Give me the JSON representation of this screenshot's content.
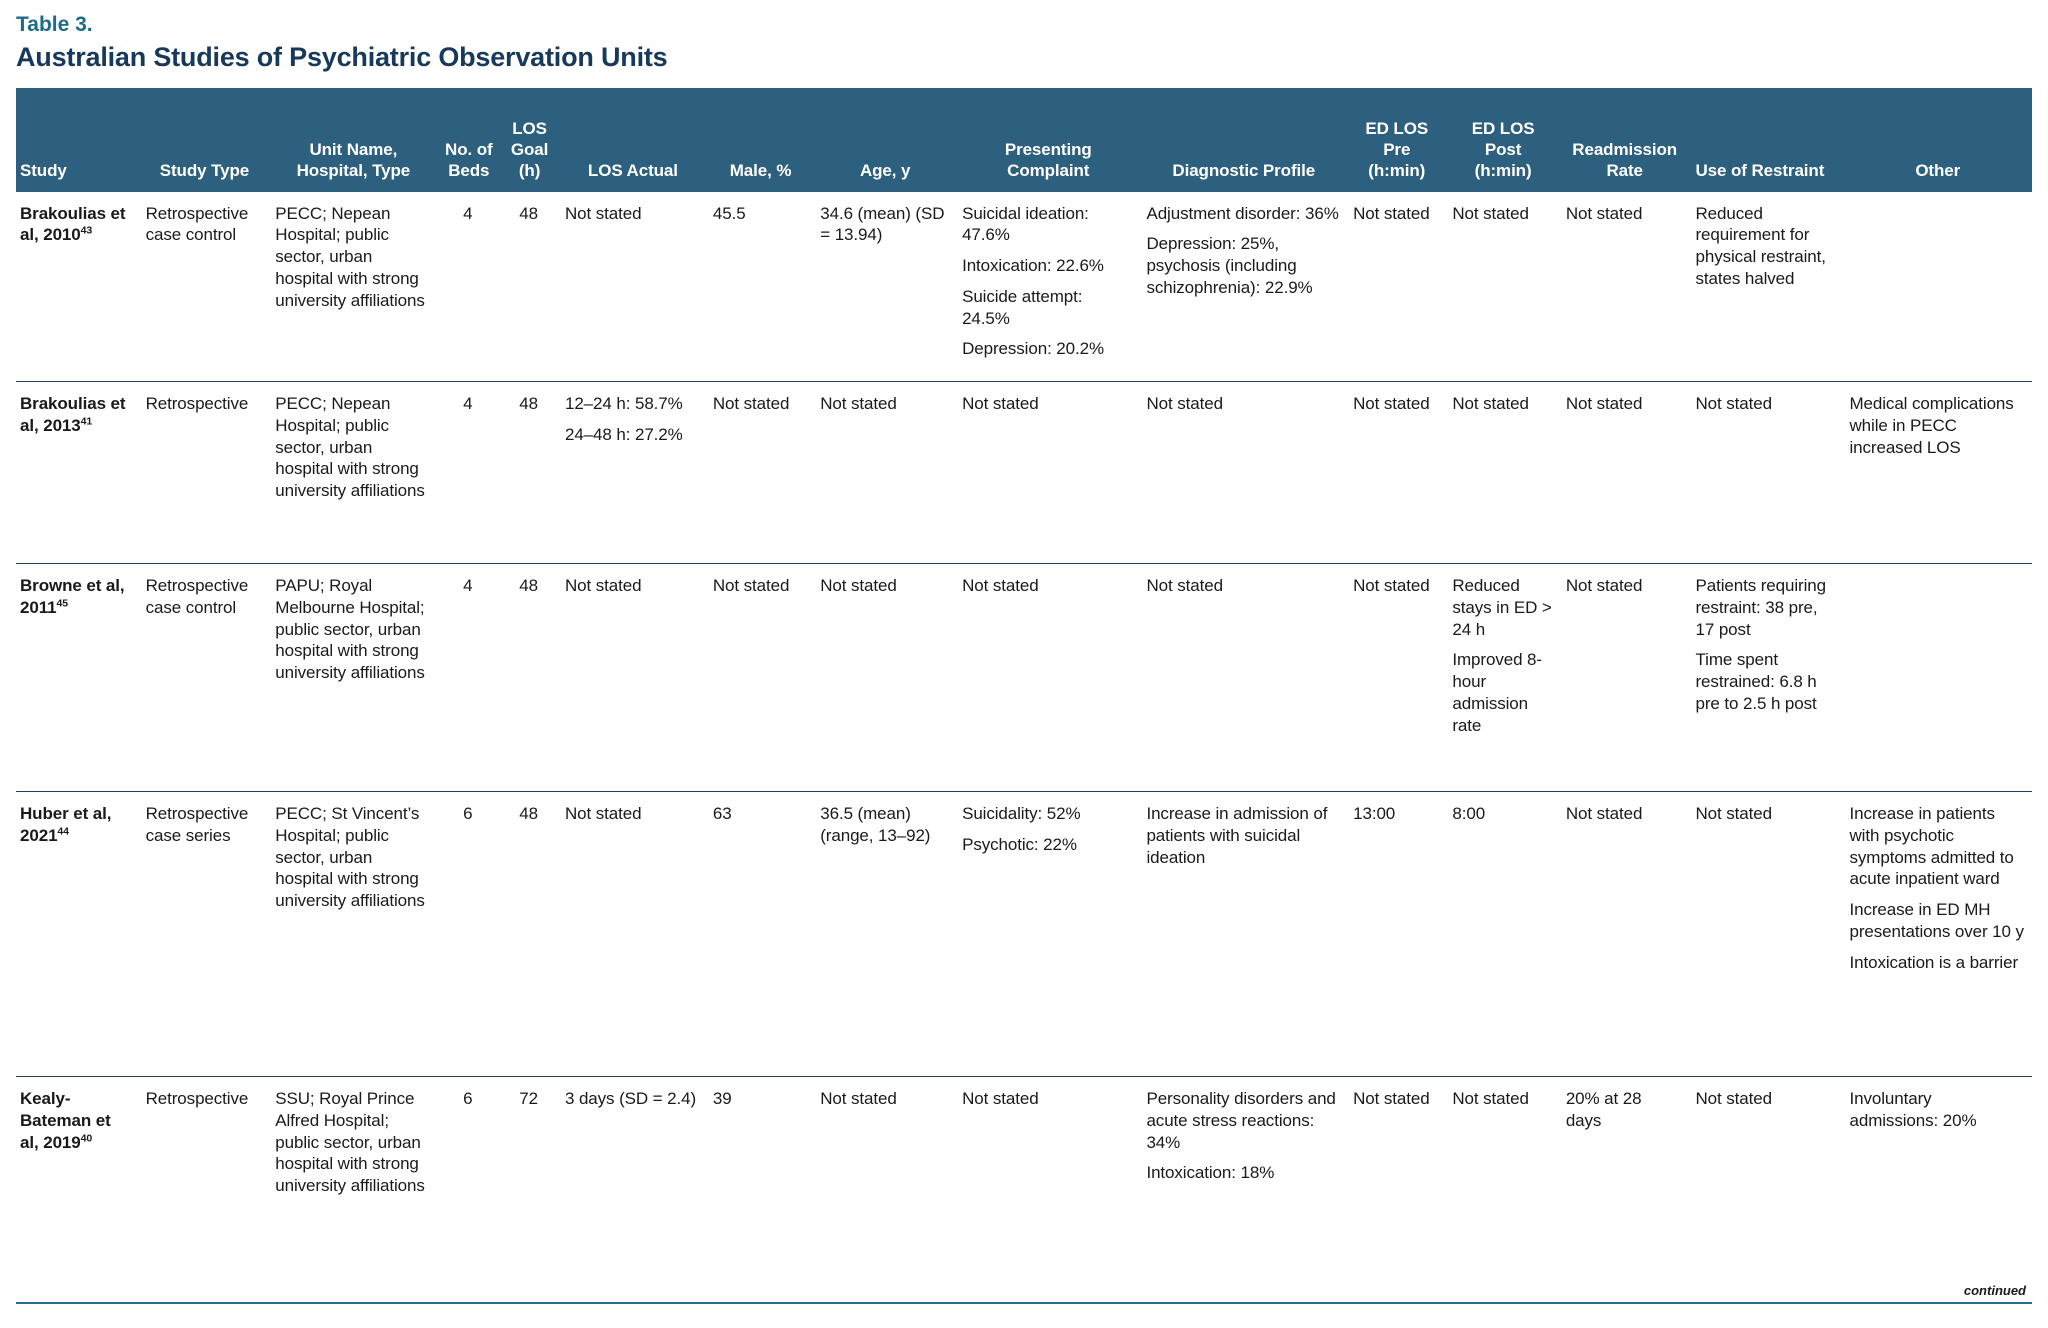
{
  "page": {
    "table_label": "Table 3.",
    "title": "Australian Studies of Psychiatric Observation Units",
    "continued_label": "continued"
  },
  "colors": {
    "header_background": "#2d5f7e",
    "table_label": "#1b6b89",
    "title": "#16395c",
    "row_rule": "#22405e",
    "bottom_rule": "#2d6b8c",
    "body_text": "#1a1a1a",
    "header_text": "#ffffff"
  },
  "table": {
    "columns": [
      {
        "key": "study",
        "label": "Study"
      },
      {
        "key": "study_type",
        "label": "Study Type"
      },
      {
        "key": "unit",
        "label": "Unit Name,\nHospital, Type"
      },
      {
        "key": "beds",
        "label": "No. of\nBeds"
      },
      {
        "key": "los_goal",
        "label": "LOS\nGoal\n(h)"
      },
      {
        "key": "los_actual",
        "label": "LOS Actual"
      },
      {
        "key": "male",
        "label": "Male, %"
      },
      {
        "key": "age",
        "label": "Age, y"
      },
      {
        "key": "presenting",
        "label": "Presenting\nComplaint"
      },
      {
        "key": "diagnostic",
        "label": "Diagnostic Profile"
      },
      {
        "key": "ed_pre",
        "label": "ED LOS\nPre\n(h:min)"
      },
      {
        "key": "ed_post",
        "label": "ED LOS\nPost\n(h:min)"
      },
      {
        "key": "readmission",
        "label": "Readmission\nRate"
      },
      {
        "key": "restraint",
        "label": "Use of Restraint"
      },
      {
        "key": "other",
        "label": "Other"
      }
    ],
    "rows": [
      {
        "study_text": "Brakoulias et al, 2010",
        "study_sup": "43",
        "cells": [
          [
            "Retrospective case control"
          ],
          [
            "PECC; Nepean Hospital; public sector, urban hospital with strong university affiliations"
          ],
          [
            "4"
          ],
          [
            "48"
          ],
          [
            "Not stated"
          ],
          [
            "45.5"
          ],
          [
            "34.6 (mean) (SD = 13.94)"
          ],
          [
            "Suicidal ideation: 47.6%",
            "Intoxication: 22.6%",
            "Suicide attempt: 24.5%",
            "Depression: 20.2%"
          ],
          [
            "Adjustment disorder: 36%",
            "Depression: 25%, psychosis (including schizophrenia): 22.9%"
          ],
          [
            "Not stated"
          ],
          [
            "Not stated"
          ],
          [
            "Not stated"
          ],
          [
            "Reduced requirement for physical restraint, states halved"
          ],
          []
        ]
      },
      {
        "study_text": "Brakoulias et al, 2013",
        "study_sup": "41",
        "cells": [
          [
            "Retrospective"
          ],
          [
            "PECC; Nepean Hospital; public sector, urban hospital with strong university affiliations"
          ],
          [
            "4"
          ],
          [
            "48"
          ],
          [
            "12–24 h: 58.7%",
            "24–48 h: 27.2%"
          ],
          [
            "Not stated"
          ],
          [
            "Not stated"
          ],
          [
            "Not stated"
          ],
          [
            "Not stated"
          ],
          [
            "Not stated"
          ],
          [
            "Not stated"
          ],
          [
            "Not stated"
          ],
          [
            "Not stated"
          ],
          [
            "Medical complications while in PECC increased LOS"
          ]
        ]
      },
      {
        "study_text": "Browne et al, 2011",
        "study_sup": "45",
        "cells": [
          [
            "Retrospective case control"
          ],
          [
            "PAPU; Royal Melbourne Hospital; public sector, urban hospital with strong university affiliations"
          ],
          [
            "4"
          ],
          [
            "48"
          ],
          [
            "Not stated"
          ],
          [
            "Not stated"
          ],
          [
            "Not stated"
          ],
          [
            "Not stated"
          ],
          [
            "Not stated"
          ],
          [
            "Not stated"
          ],
          [
            "Reduced stays in ED > 24 h",
            "Improved 8-hour admission rate"
          ],
          [
            "Not stated"
          ],
          [
            "Patients requiring restraint: 38 pre, 17 post",
            "Time spent restrained: 6.8 h pre to 2.5 h post"
          ],
          []
        ]
      },
      {
        "study_text": "Huber et al, 2021",
        "study_sup": "44",
        "cells": [
          [
            "Retrospective case series"
          ],
          [
            "PECC; St Vincent’s Hospital; public sector, urban hospital with strong university affiliations"
          ],
          [
            "6"
          ],
          [
            "48"
          ],
          [
            "Not stated"
          ],
          [
            "63"
          ],
          [
            "36.5 (mean) (range, 13–92)"
          ],
          [
            "Suicidality: 52%",
            "Psychotic: 22%"
          ],
          [
            "Increase in admission of patients with suicidal ideation"
          ],
          [
            "13:00"
          ],
          [
            "8:00"
          ],
          [
            "Not stated"
          ],
          [
            "Not stated"
          ],
          [
            "Increase in patients with psychotic symptoms admitted to acute inpatient ward",
            "Increase in ED MH presentations over 10 y",
            "Intoxication is a barrier"
          ]
        ]
      },
      {
        "study_text": "Kealy-Bateman et al, 2019",
        "study_sup": "40",
        "cells": [
          [
            "Retrospective"
          ],
          [
            "SSU; Royal Prince Alfred Hospital; public sector, urban hospital with strong university affiliations"
          ],
          [
            "6"
          ],
          [
            "72"
          ],
          [
            "3 days (SD = 2.4)"
          ],
          [
            "39"
          ],
          [
            "Not stated"
          ],
          [
            "Not stated"
          ],
          [
            "Personality disorders and acute stress reactions: 34%",
            "Intoxication: 18%"
          ],
          [
            "Not stated"
          ],
          [
            "Not stated"
          ],
          [
            "20% at 28 days"
          ],
          [
            "Not stated"
          ],
          [
            "Involuntary admissions: 20%"
          ]
        ]
      }
    ]
  }
}
